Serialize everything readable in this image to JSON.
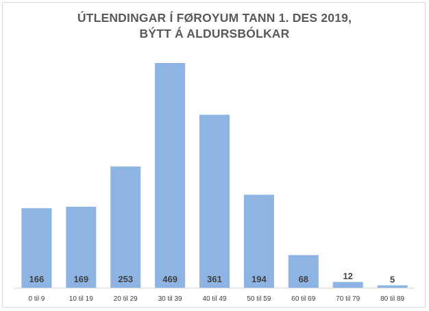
{
  "chart_data": {
    "type": "bar",
    "title_lines": [
      "ÚTLENDINGAR Í FØROYUM TANN 1. DES 2019,",
      "BÝTT Á ALDURSBÓLKAR"
    ],
    "categories": [
      "0 til 9",
      "10 til 19",
      "20 til 29",
      "30 til 39",
      "40 til 49",
      "50 til 59",
      "60 til 69",
      "70 til 79",
      "80 til 89"
    ],
    "values": [
      166,
      169,
      253,
      469,
      361,
      194,
      68,
      12,
      5
    ],
    "xlabel": "",
    "ylabel": "",
    "ylim": [
      0,
      469
    ],
    "grid": false,
    "legend": "none",
    "bar_color": "#8db4e2",
    "label_color": "#404040",
    "axis_color": "#d9d9d9",
    "tick_label_color": "#404040"
  }
}
